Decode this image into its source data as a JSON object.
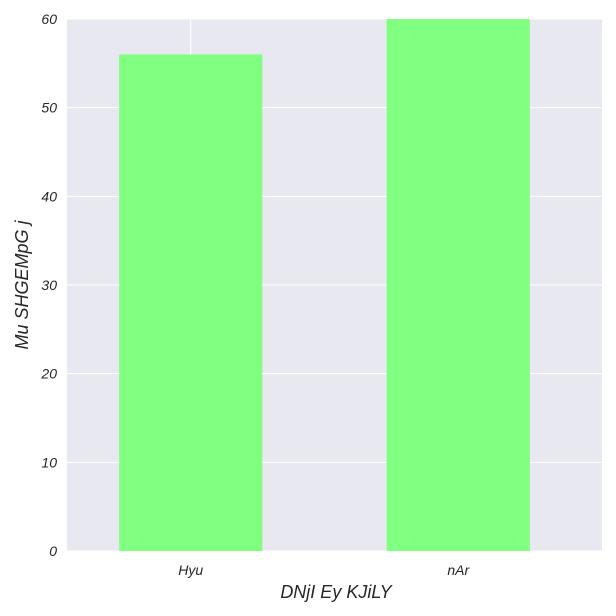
{
  "chart_data": {
    "type": "bar",
    "title": "",
    "xlabel": "DNjI Ey KJiLY",
    "ylabel": "Mu SHGEMpG j",
    "categories": [
      "Hyu",
      "nAr"
    ],
    "series": [
      {
        "values": [
          56,
          60
        ]
      }
    ],
    "ylim": [
      0,
      60
    ],
    "yticks": [
      0,
      10,
      20,
      30,
      40,
      50,
      60
    ],
    "grid": true,
    "legend": false,
    "colors": {
      "plot_background": "#e8e8f0",
      "grid": "#ffffff",
      "bar": "#80ff80",
      "text": "#262626"
    }
  }
}
